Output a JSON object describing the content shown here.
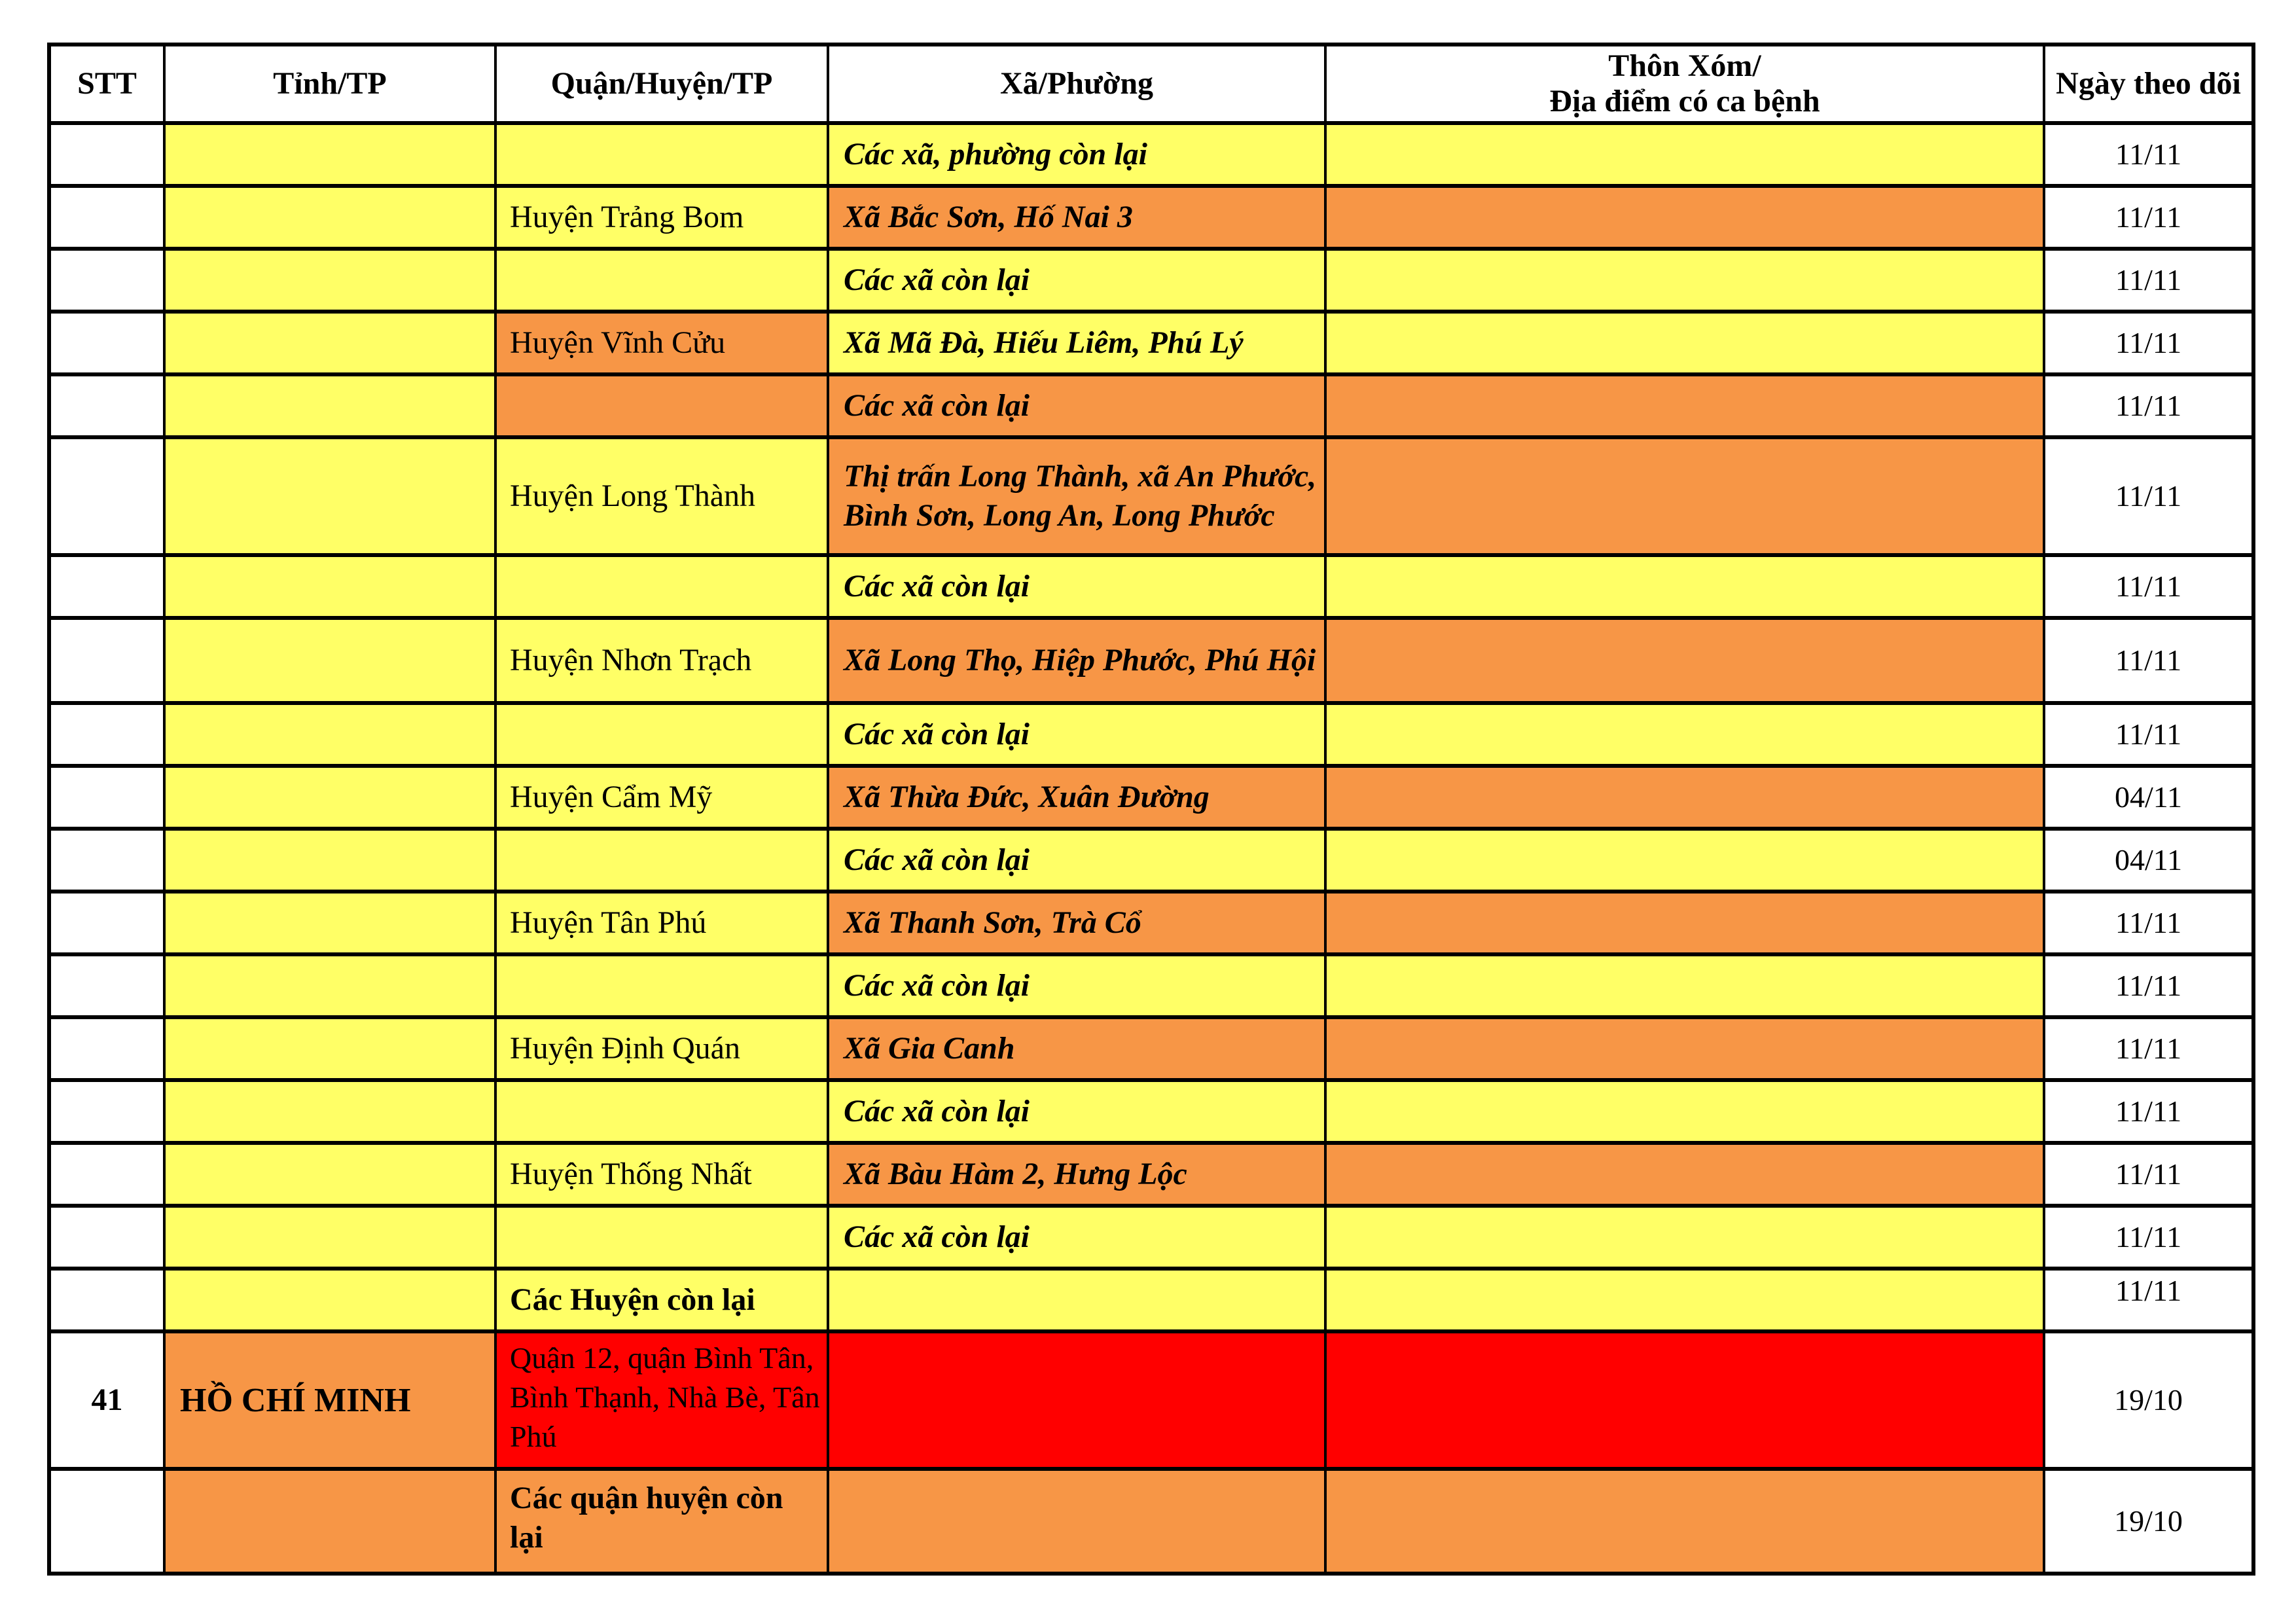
{
  "colors": {
    "yellow": "#FFFF66",
    "orange": "#F79646",
    "red": "#FF0000",
    "white": "#FFFFFF",
    "border": "#000000",
    "text": "#000000"
  },
  "table": {
    "columns": [
      {
        "key": "stt",
        "label": "STT"
      },
      {
        "key": "province",
        "label": "Tỉnh/TP"
      },
      {
        "key": "district",
        "label": "Quận/Huyện/TP"
      },
      {
        "key": "ward",
        "label": "Xã/Phường"
      },
      {
        "key": "hamlet",
        "label": "Thôn Xóm/\nĐịa điểm có ca bệnh"
      },
      {
        "key": "date",
        "label": "Ngày theo dõi"
      }
    ],
    "rows": [
      {
        "cells": [
          {
            "text": "",
            "bg": "white"
          },
          {
            "text": "",
            "bg": "yellow"
          },
          {
            "text": "",
            "bg": "yellow"
          },
          {
            "text": "Các xã, phường còn lại",
            "bg": "yellow"
          },
          {
            "text": "",
            "bg": "yellow"
          },
          {
            "text": "11/11",
            "bg": "white"
          }
        ]
      },
      {
        "cells": [
          {
            "text": "",
            "bg": "white"
          },
          {
            "text": "",
            "bg": "yellow"
          },
          {
            "text": "Huyện Trảng Bom",
            "bg": "yellow"
          },
          {
            "text": "Xã Bắc Sơn, Hố Nai 3",
            "bg": "orange"
          },
          {
            "text": "",
            "bg": "orange"
          },
          {
            "text": "11/11",
            "bg": "white"
          }
        ]
      },
      {
        "cells": [
          {
            "text": "",
            "bg": "white"
          },
          {
            "text": "",
            "bg": "yellow"
          },
          {
            "text": "",
            "bg": "yellow"
          },
          {
            "text": "Các xã còn lại",
            "bg": "yellow"
          },
          {
            "text": "",
            "bg": "yellow"
          },
          {
            "text": "11/11",
            "bg": "white"
          }
        ]
      },
      {
        "cells": [
          {
            "text": "",
            "bg": "white"
          },
          {
            "text": "",
            "bg": "yellow"
          },
          {
            "text": "Huyện Vĩnh Cửu",
            "bg": "orange"
          },
          {
            "text": "Xã Mã Đà, Hiếu Liêm, Phú Lý",
            "bg": "yellow"
          },
          {
            "text": "",
            "bg": "yellow"
          },
          {
            "text": "11/11",
            "bg": "white"
          }
        ]
      },
      {
        "cells": [
          {
            "text": "",
            "bg": "white"
          },
          {
            "text": "",
            "bg": "yellow"
          },
          {
            "text": "",
            "bg": "orange"
          },
          {
            "text": "Các xã còn lại",
            "bg": "orange"
          },
          {
            "text": "",
            "bg": "orange"
          },
          {
            "text": "11/11",
            "bg": "white"
          }
        ]
      },
      {
        "cells": [
          {
            "text": "",
            "bg": "white"
          },
          {
            "text": "",
            "bg": "yellow"
          },
          {
            "text": "Huyện Long Thành",
            "bg": "yellow"
          },
          {
            "text": "Thị trấn Long Thành, xã An Phước, Bình Sơn, Long An, Long Phước",
            "bg": "orange"
          },
          {
            "text": "",
            "bg": "orange"
          },
          {
            "text": "11/11",
            "bg": "white"
          }
        ]
      },
      {
        "cells": [
          {
            "text": "",
            "bg": "white"
          },
          {
            "text": "",
            "bg": "yellow"
          },
          {
            "text": "",
            "bg": "yellow"
          },
          {
            "text": "Các xã còn lại",
            "bg": "yellow"
          },
          {
            "text": "",
            "bg": "yellow"
          },
          {
            "text": "11/11",
            "bg": "white"
          }
        ]
      },
      {
        "cells": [
          {
            "text": "",
            "bg": "white"
          },
          {
            "text": "",
            "bg": "yellow"
          },
          {
            "text": "Huyện Nhơn Trạch",
            "bg": "yellow"
          },
          {
            "text": "Xã Long Thọ, Hiệp Phước, Phú Hội",
            "bg": "orange"
          },
          {
            "text": "",
            "bg": "orange"
          },
          {
            "text": "11/11",
            "bg": "white"
          }
        ]
      },
      {
        "cells": [
          {
            "text": "",
            "bg": "white"
          },
          {
            "text": "",
            "bg": "yellow"
          },
          {
            "text": "",
            "bg": "yellow"
          },
          {
            "text": "Các xã còn lại",
            "bg": "yellow"
          },
          {
            "text": "",
            "bg": "yellow"
          },
          {
            "text": "11/11",
            "bg": "white"
          }
        ]
      },
      {
        "cells": [
          {
            "text": "",
            "bg": "white"
          },
          {
            "text": "",
            "bg": "yellow"
          },
          {
            "text": "Huyện Cẩm Mỹ",
            "bg": "yellow"
          },
          {
            "text": "Xã Thừa Đức, Xuân Đường",
            "bg": "orange"
          },
          {
            "text": "",
            "bg": "orange"
          },
          {
            "text": "04/11",
            "bg": "white"
          }
        ]
      },
      {
        "cells": [
          {
            "text": "",
            "bg": "white"
          },
          {
            "text": "",
            "bg": "yellow"
          },
          {
            "text": "",
            "bg": "yellow"
          },
          {
            "text": "Các xã còn lại",
            "bg": "yellow"
          },
          {
            "text": "",
            "bg": "yellow"
          },
          {
            "text": "04/11",
            "bg": "white"
          }
        ]
      },
      {
        "cells": [
          {
            "text": "",
            "bg": "white"
          },
          {
            "text": "",
            "bg": "yellow"
          },
          {
            "text": "Huyện Tân Phú",
            "bg": "yellow"
          },
          {
            "text": "Xã Thanh Sơn, Trà Cổ",
            "bg": "orange"
          },
          {
            "text": "",
            "bg": "orange"
          },
          {
            "text": "11/11",
            "bg": "white"
          }
        ]
      },
      {
        "cells": [
          {
            "text": "",
            "bg": "white"
          },
          {
            "text": "",
            "bg": "yellow"
          },
          {
            "text": "",
            "bg": "yellow"
          },
          {
            "text": "Các xã còn lại",
            "bg": "yellow"
          },
          {
            "text": "",
            "bg": "yellow"
          },
          {
            "text": "11/11",
            "bg": "white"
          }
        ]
      },
      {
        "cells": [
          {
            "text": "",
            "bg": "white"
          },
          {
            "text": "",
            "bg": "yellow"
          },
          {
            "text": "Huyện Định Quán",
            "bg": "yellow"
          },
          {
            "text": "Xã Gia Canh",
            "bg": "orange"
          },
          {
            "text": "",
            "bg": "orange"
          },
          {
            "text": "11/11",
            "bg": "white"
          }
        ]
      },
      {
        "cells": [
          {
            "text": "",
            "bg": "white"
          },
          {
            "text": "",
            "bg": "yellow"
          },
          {
            "text": "",
            "bg": "yellow"
          },
          {
            "text": "Các xã còn lại",
            "bg": "yellow"
          },
          {
            "text": "",
            "bg": "yellow"
          },
          {
            "text": "11/11",
            "bg": "white"
          }
        ]
      },
      {
        "cells": [
          {
            "text": "",
            "bg": "white"
          },
          {
            "text": "",
            "bg": "yellow"
          },
          {
            "text": "Huyện Thống Nhất",
            "bg": "yellow"
          },
          {
            "text": "Xã Bàu Hàm 2, Hưng Lộc",
            "bg": "orange"
          },
          {
            "text": "",
            "bg": "orange"
          },
          {
            "text": "11/11",
            "bg": "white"
          }
        ]
      },
      {
        "cells": [
          {
            "text": "",
            "bg": "white"
          },
          {
            "text": "",
            "bg": "yellow"
          },
          {
            "text": "",
            "bg": "yellow"
          },
          {
            "text": "Các xã còn lại",
            "bg": "yellow"
          },
          {
            "text": "",
            "bg": "yellow"
          },
          {
            "text": "11/11",
            "bg": "white"
          }
        ]
      },
      {
        "cells": [
          {
            "text": "",
            "bg": "white"
          },
          {
            "text": "",
            "bg": "yellow"
          },
          {
            "text": "Các Huyện còn lại",
            "bg": "yellow"
          },
          {
            "text": "",
            "bg": "yellow"
          },
          {
            "text": "",
            "bg": "yellow"
          },
          {
            "text": "11/11",
            "bg": "white"
          }
        ]
      },
      {
        "cells": [
          {
            "text": "41",
            "bg": "white"
          },
          {
            "text": "HỒ CHÍ MINH",
            "bg": "orange"
          },
          {
            "text": "Quận 12, quận Bình Tân, Bình Thạnh, Nhà Bè, Tân Phú",
            "bg": "red"
          },
          {
            "text": "",
            "bg": "red"
          },
          {
            "text": "",
            "bg": "red"
          },
          {
            "text": "19/10",
            "bg": "white"
          }
        ]
      },
      {
        "cells": [
          {
            "text": "",
            "bg": "white"
          },
          {
            "text": "",
            "bg": "orange"
          },
          {
            "text": "Các quận huyện còn lại",
            "bg": "orange"
          },
          {
            "text": "",
            "bg": "orange"
          },
          {
            "text": "",
            "bg": "orange"
          },
          {
            "text": "19/10",
            "bg": "white"
          }
        ]
      }
    ]
  }
}
